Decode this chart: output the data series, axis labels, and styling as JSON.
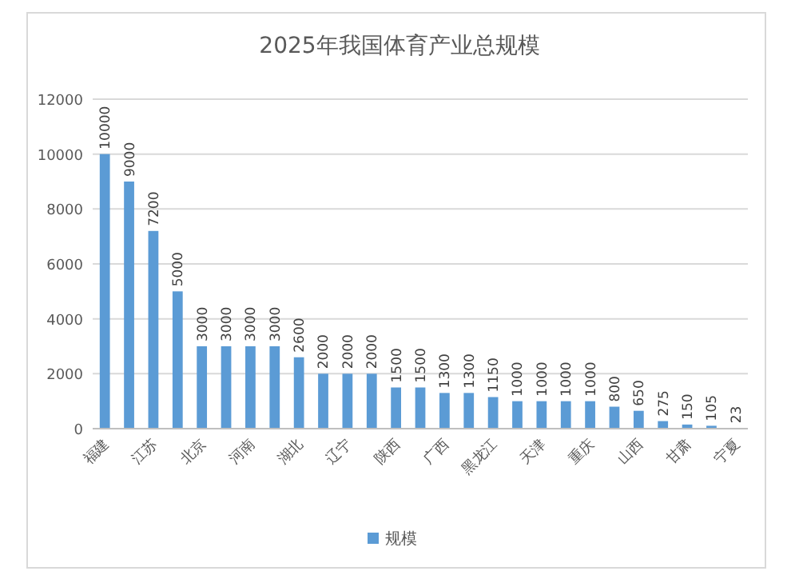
{
  "chart_data": {
    "type": "bar",
    "title": "2025年我国体育产业总规模",
    "categories": [
      "福建",
      null,
      "江苏",
      null,
      "北京",
      null,
      "河南",
      null,
      "湖北",
      null,
      "辽宁",
      null,
      "陕西",
      null,
      "广西",
      null,
      "黑龙江",
      null,
      "天津",
      null,
      "重庆",
      null,
      "山西",
      null,
      "甘肃",
      null,
      "宁夏"
    ],
    "series": [
      {
        "name": "规模",
        "color": "#5b9bd5",
        "values": [
          10000,
          9000,
          7200,
          5000,
          3000,
          3000,
          3000,
          3000,
          2600,
          2000,
          2000,
          2000,
          1500,
          1500,
          1300,
          1300,
          1150,
          1000,
          1000,
          1000,
          1000,
          800,
          650,
          275,
          150,
          105,
          23
        ]
      }
    ],
    "ylim": [
      0,
      12000
    ],
    "yticks": [
      0,
      2000,
      4000,
      6000,
      8000,
      10000,
      12000
    ],
    "grid": "y",
    "legend": "bottom",
    "data_labels": true
  }
}
